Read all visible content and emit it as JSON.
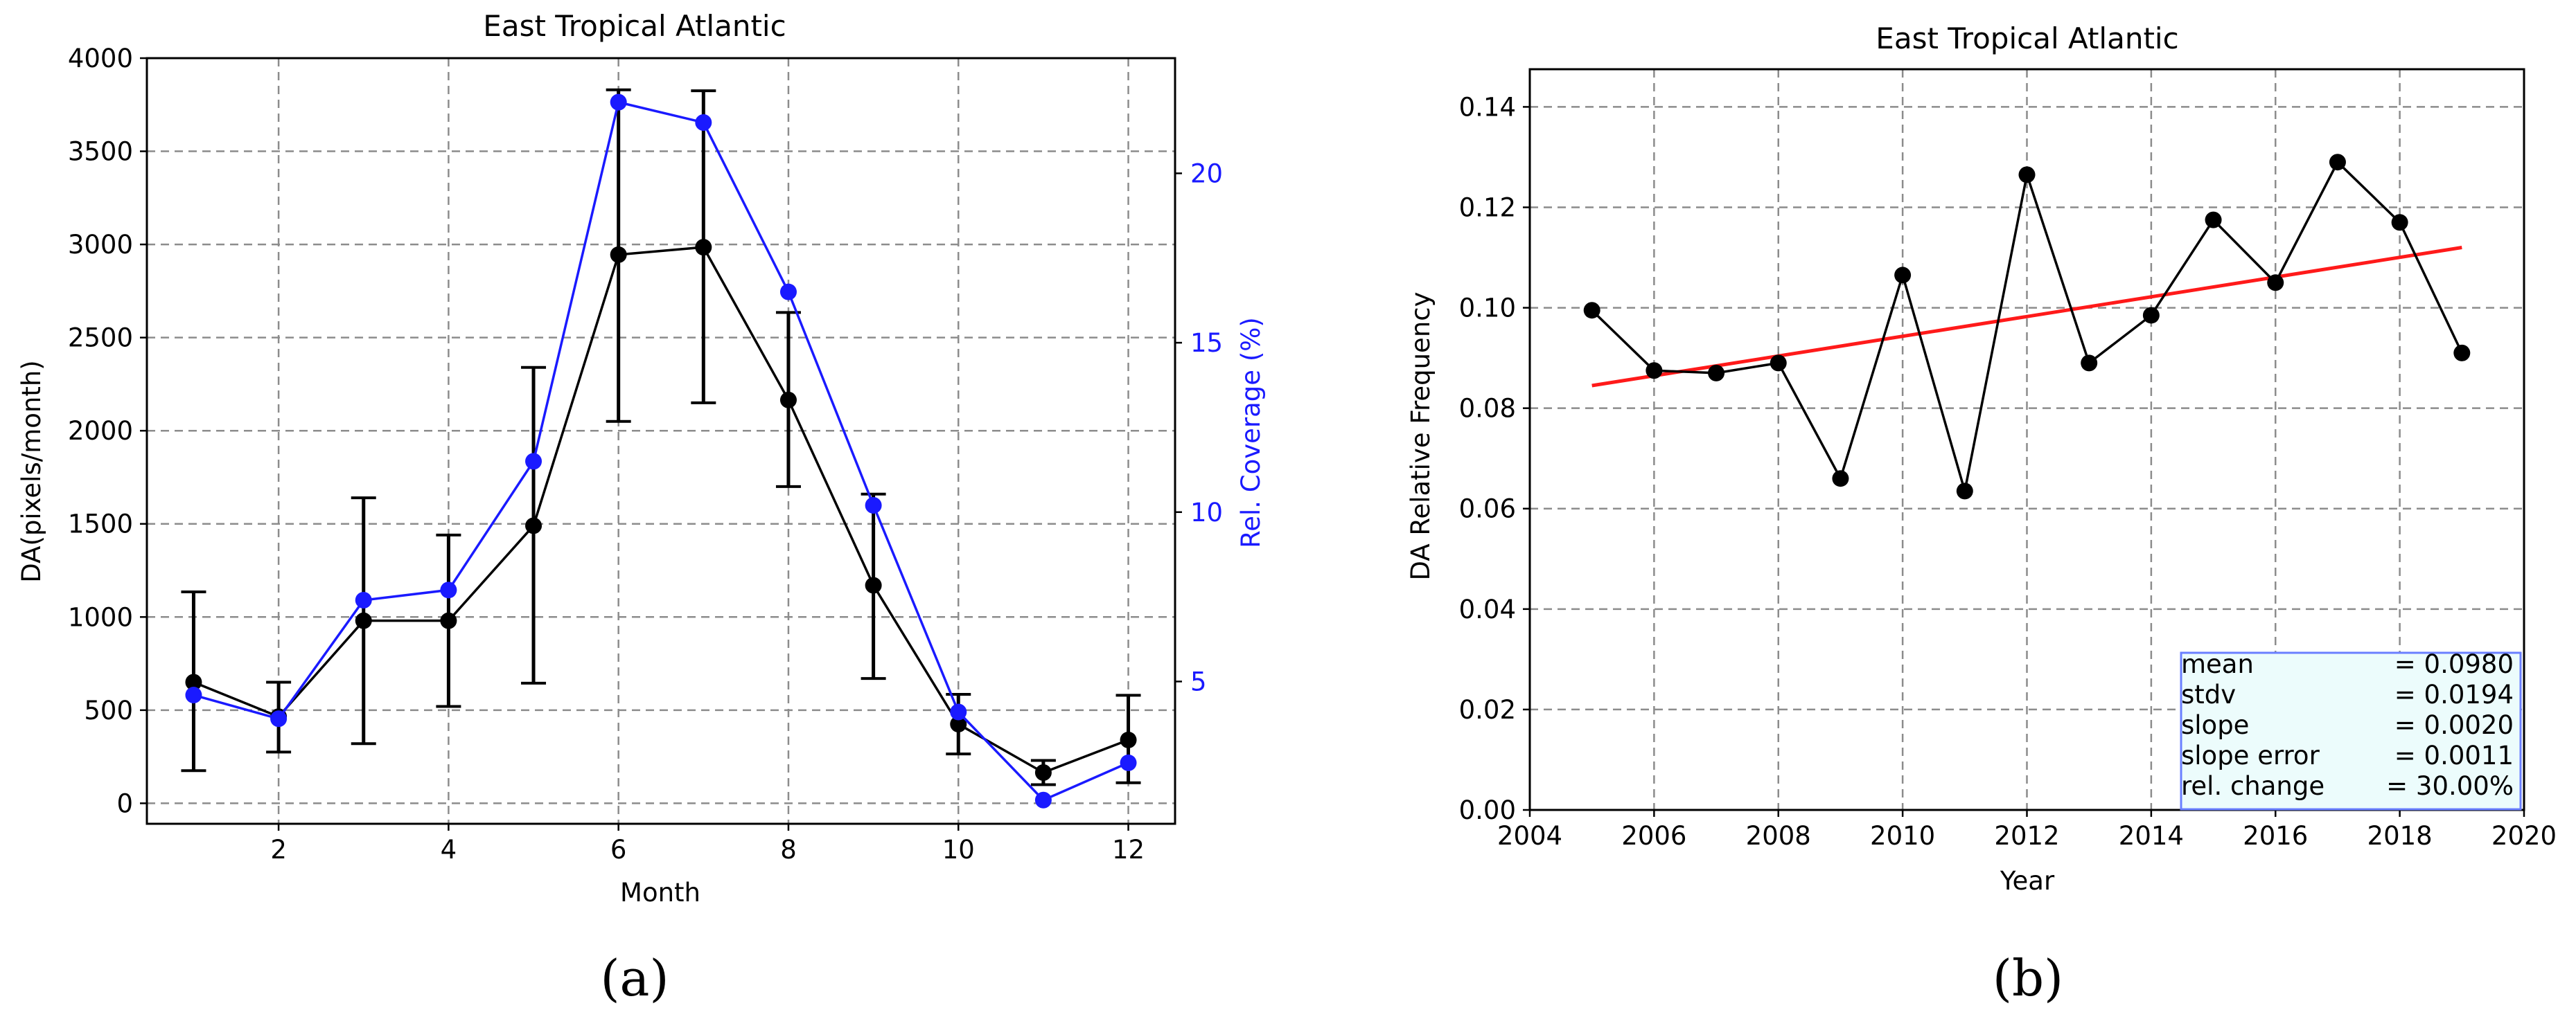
{
  "chart_data": [
    {
      "type": "line",
      "panel_label": "(a)",
      "title": "East Tropical Atlantic",
      "xlabel": "Month",
      "ylabel": "DA(pixels/month)",
      "y2label": "Rel. Coverage (%)",
      "xlim": [
        0.45,
        12.55
      ],
      "ylim": [
        -110,
        4000
      ],
      "y2lim": [
        0.8,
        23.4
      ],
      "xticks": [
        2,
        4,
        6,
        8,
        10,
        12
      ],
      "yticks": [
        0,
        500,
        1000,
        1500,
        2000,
        2500,
        3000,
        3500,
        4000
      ],
      "y2ticks": [
        5,
        10,
        15,
        20
      ],
      "grid": true,
      "series": [
        {
          "name": "DA",
          "axis": "left",
          "color": "#000000",
          "x": [
            1,
            2,
            3,
            4,
            5,
            6,
            7,
            8,
            9,
            10,
            11,
            12
          ],
          "values": [
            650,
            465,
            980,
            980,
            1490,
            2945,
            2985,
            2165,
            1170,
            425,
            165,
            340
          ],
          "err_low": [
            175,
            275,
            320,
            520,
            645,
            2050,
            2150,
            1700,
            670,
            265,
            100,
            110
          ],
          "err_high": [
            1135,
            650,
            1640,
            1440,
            2340,
            3830,
            3825,
            2635,
            1660,
            585,
            230,
            580
          ]
        },
        {
          "name": "Rel. Coverage",
          "axis": "right",
          "color": "#1a1aff",
          "x": [
            1,
            2,
            3,
            4,
            5,
            6,
            7,
            8,
            9,
            10,
            11,
            12
          ],
          "values": [
            4.6,
            3.9,
            7.4,
            7.7,
            11.5,
            22.1,
            21.5,
            16.5,
            10.2,
            4.1,
            1.5,
            2.6
          ]
        }
      ]
    },
    {
      "type": "line",
      "panel_label": "(b)",
      "title": "East Tropical Atlantic",
      "xlabel": "Year",
      "ylabel": "DA Relative Frequency",
      "xlim": [
        2004,
        2020
      ],
      "ylim": [
        0,
        0.1475
      ],
      "xticks": [
        2004,
        2006,
        2008,
        2010,
        2012,
        2014,
        2016,
        2018,
        2020
      ],
      "yticks": [
        0.0,
        0.02,
        0.04,
        0.06,
        0.08,
        0.1,
        0.12,
        0.14
      ],
      "grid": true,
      "series": [
        {
          "name": "DA relative frequency",
          "color": "#000000",
          "x": [
            2005,
            2006,
            2007,
            2008,
            2009,
            2010,
            2011,
            2012,
            2013,
            2014,
            2015,
            2016,
            2017,
            2018,
            2019
          ],
          "values": [
            0.0995,
            0.0875,
            0.087,
            0.089,
            0.066,
            0.1065,
            0.0635,
            0.1265,
            0.089,
            0.0985,
            0.1175,
            0.105,
            0.129,
            0.117,
            0.091
          ]
        },
        {
          "name": "trend",
          "color": "#ff1a1a",
          "x": [
            2005,
            2019
          ],
          "values": [
            0.0845,
            0.112
          ]
        }
      ],
      "stats": [
        {
          "label": "mean",
          "value": "= 0.0980"
        },
        {
          "label": "stdv",
          "value": "= 0.0194"
        },
        {
          "label": "slope",
          "value": "= 0.0020"
        },
        {
          "label": "slope error",
          "value": "= 0.0011"
        },
        {
          "label": "rel. change",
          "value": "= 30.00%"
        }
      ]
    }
  ]
}
